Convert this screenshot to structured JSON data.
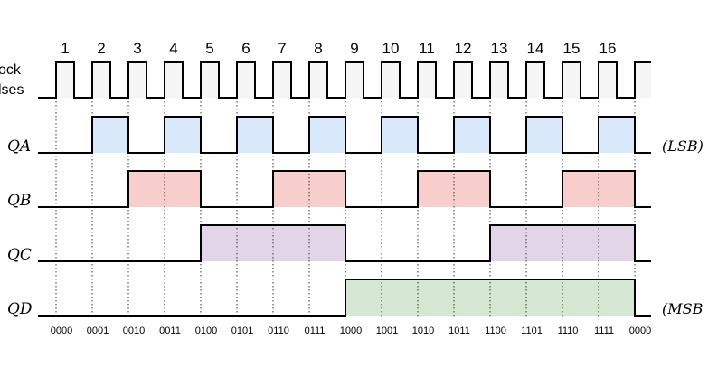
{
  "clock": {
    "label_line1": "ock",
    "label_line2": "lses",
    "pulse_numbers": [
      "1",
      "2",
      "3",
      "4",
      "5",
      "6",
      "7",
      "8",
      "9",
      "10",
      "11",
      "12",
      "13",
      "14",
      "15",
      "16"
    ]
  },
  "signals": [
    {
      "id": "qa",
      "label": "QA",
      "side_note": "(LSB)",
      "color": "#dae8fc",
      "periods": [
        0,
        1,
        0,
        1,
        0,
        1,
        0,
        1,
        0,
        1,
        0,
        1,
        0,
        1,
        0,
        1
      ]
    },
    {
      "id": "qb",
      "label": "QB",
      "side_note": "",
      "color": "#f8cecc",
      "periods": [
        0,
        0,
        1,
        1,
        0,
        0,
        1,
        1,
        0,
        0,
        1,
        1,
        0,
        0,
        1,
        1
      ]
    },
    {
      "id": "qc",
      "label": "QC",
      "side_note": "",
      "color": "#e1d5e7",
      "periods": [
        0,
        0,
        0,
        0,
        1,
        1,
        1,
        1,
        0,
        0,
        0,
        0,
        1,
        1,
        1,
        1
      ]
    },
    {
      "id": "qd",
      "label": "QD",
      "side_note": "(MSB",
      "color": "#d5e8d4",
      "periods": [
        0,
        0,
        0,
        0,
        0,
        0,
        0,
        0,
        1,
        1,
        1,
        1,
        1,
        1,
        1,
        1
      ]
    }
  ],
  "states": [
    "0000",
    "0001",
    "0010",
    "0011",
    "0100",
    "0101",
    "0110",
    "0111",
    "1000",
    "1001",
    "1010",
    "1011",
    "1100",
    "1101",
    "1110",
    "1111",
    "0000"
  ],
  "colors": {
    "clock_fill": "#f5f5f5",
    "line": "#000000",
    "text": "#000000"
  }
}
